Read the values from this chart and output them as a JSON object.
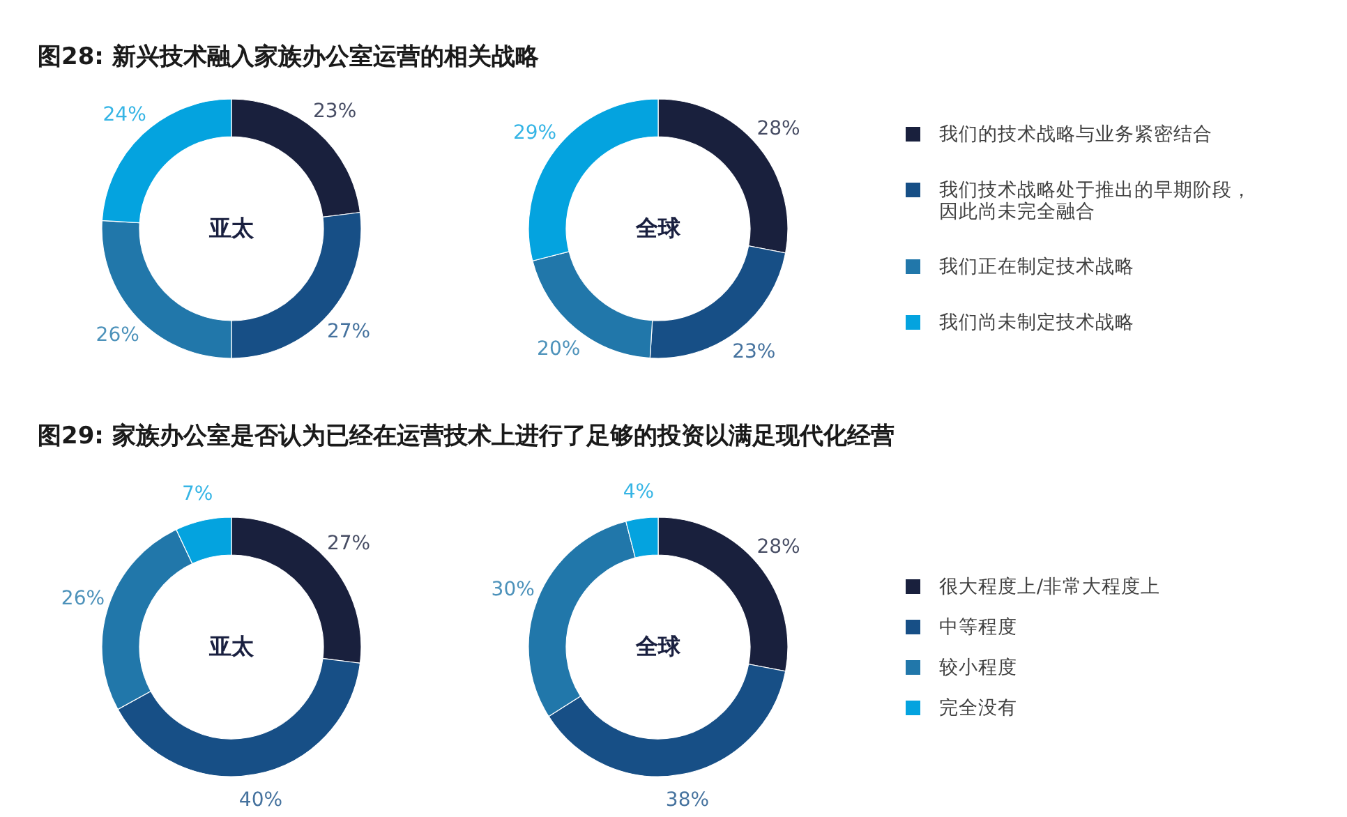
{
  "chart_data": [
    {
      "type": "donut",
      "title": "图28: 新兴技术融入家族办公室运营的相关战略",
      "categories": [
        "我们的技术战略与业务紧密结合",
        "我们技术战略处于推出的早期阶段，因此尚未完全融合",
        "我们正在制定技术战略",
        "我们尚未制定技术战略"
      ],
      "colors": [
        "#19203d",
        "#174f86",
        "#2177aa",
        "#04a3df"
      ],
      "legend": "right",
      "series": [
        {
          "name": "亚太",
          "values": [
            23,
            27,
            26,
            24
          ],
          "value_labels": [
            "23%",
            "27%",
            "26%",
            "24%"
          ]
        },
        {
          "name": "全球",
          "values": [
            28,
            23,
            20,
            29
          ],
          "value_labels": [
            "28%",
            "23%",
            "20%",
            "29%"
          ]
        }
      ]
    },
    {
      "type": "donut",
      "title": "图29: 家族办公室是否认为已经在运营技术上进行了足够的投资以满足现代化经营",
      "categories": [
        "很大程度上/非常大程度上",
        "中等程度",
        "较小程度",
        "完全没有"
      ],
      "colors": [
        "#19203d",
        "#174f86",
        "#2177aa",
        "#04a3df"
      ],
      "legend": "right",
      "series": [
        {
          "name": "亚太",
          "values": [
            27,
            40,
            26,
            7
          ],
          "value_labels": [
            "27%",
            "40%",
            "26%",
            "7%"
          ]
        },
        {
          "name": "全球",
          "values": [
            28,
            38,
            30,
            4
          ],
          "value_labels": [
            "28%",
            "38%",
            "30%",
            "4%"
          ]
        }
      ]
    }
  ]
}
